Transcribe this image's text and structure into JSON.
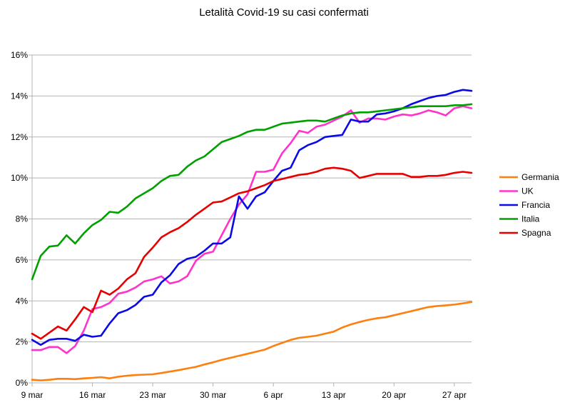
{
  "chart_data": {
    "type": "line",
    "title": "Letalità Covid-19 su casi confermati",
    "xlabel": "",
    "ylabel": "",
    "ylim": [
      0,
      16
    ],
    "yticks": [
      0,
      2,
      4,
      6,
      8,
      10,
      12,
      14,
      16
    ],
    "ytick_labels": [
      "0%",
      "2%",
      "4%",
      "6%",
      "8%",
      "10%",
      "12%",
      "14%",
      "16%"
    ],
    "xrange_days": [
      0,
      51
    ],
    "xticks": [
      {
        "day": 0,
        "label": "9 mar"
      },
      {
        "day": 7,
        "label": "16 mar"
      },
      {
        "day": 14,
        "label": "23 mar"
      },
      {
        "day": 21,
        "label": "30 mar"
      },
      {
        "day": 28,
        "label": "6 apr"
      },
      {
        "day": 35,
        "label": "13 apr"
      },
      {
        "day": 42,
        "label": "20 apr"
      },
      {
        "day": 49,
        "label": "27 apr"
      }
    ],
    "grid": true,
    "legend_position": "right",
    "series": [
      {
        "name": "Germania",
        "color": "#ff7f0e",
        "values": [
          0.15,
          0.12,
          0.15,
          0.2,
          0.2,
          0.18,
          0.22,
          0.24,
          0.28,
          0.22,
          0.3,
          0.35,
          0.38,
          0.4,
          0.42,
          0.48,
          0.55,
          0.62,
          0.7,
          0.78,
          0.9,
          1.0,
          1.12,
          1.22,
          1.32,
          1.42,
          1.52,
          1.62,
          1.8,
          1.95,
          2.1,
          2.2,
          2.25,
          2.3,
          2.4,
          2.5,
          2.7,
          2.85,
          2.97,
          3.07,
          3.15,
          3.2,
          3.3,
          3.4,
          3.5,
          3.6,
          3.7,
          3.75,
          3.78,
          3.82,
          3.88,
          3.95
        ]
      },
      {
        "name": "UK",
        "color": "#ff33cc",
        "values": [
          1.6,
          1.6,
          1.75,
          1.75,
          1.45,
          1.8,
          2.55,
          3.6,
          3.7,
          3.9,
          4.35,
          4.45,
          4.65,
          4.95,
          5.05,
          5.2,
          4.85,
          4.95,
          5.2,
          5.95,
          6.3,
          6.4,
          7.2,
          8.0,
          8.7,
          9.2,
          10.3,
          10.3,
          10.4,
          11.2,
          11.7,
          12.3,
          12.2,
          12.5,
          12.6,
          12.8,
          13.0,
          13.3,
          12.7,
          12.9,
          12.9,
          12.85,
          13.0,
          13.1,
          13.05,
          13.15,
          13.3,
          13.2,
          13.05,
          13.4,
          13.5,
          13.4
        ]
      },
      {
        "name": "Francia",
        "color": "#0a0ae6",
        "values": [
          2.1,
          1.85,
          2.1,
          2.15,
          2.15,
          2.05,
          2.35,
          2.25,
          2.3,
          2.9,
          3.4,
          3.55,
          3.8,
          4.2,
          4.3,
          4.9,
          5.25,
          5.8,
          6.05,
          6.15,
          6.45,
          6.8,
          6.8,
          7.1,
          9.1,
          8.5,
          9.1,
          9.3,
          9.85,
          10.35,
          10.5,
          11.35,
          11.6,
          11.75,
          12.0,
          12.05,
          12.1,
          12.85,
          12.75,
          12.75,
          13.1,
          13.15,
          13.25,
          13.4,
          13.6,
          13.75,
          13.9,
          14.0,
          14.05,
          14.2,
          14.3,
          14.25
        ]
      },
      {
        "name": "Italia",
        "color": "#00a000",
        "values": [
          5.05,
          6.2,
          6.65,
          6.7,
          7.2,
          6.8,
          7.3,
          7.7,
          7.95,
          8.35,
          8.3,
          8.6,
          9.0,
          9.25,
          9.5,
          9.85,
          10.1,
          10.15,
          10.55,
          10.85,
          11.05,
          11.4,
          11.75,
          11.9,
          12.05,
          12.25,
          12.35,
          12.35,
          12.5,
          12.65,
          12.7,
          12.75,
          12.8,
          12.8,
          12.75,
          12.9,
          13.05,
          13.15,
          13.2,
          13.2,
          13.25,
          13.3,
          13.35,
          13.4,
          13.45,
          13.5,
          13.5,
          13.5,
          13.5,
          13.55,
          13.55,
          13.6
        ]
      },
      {
        "name": "Spagna",
        "color": "#e60000",
        "values": [
          2.4,
          2.15,
          2.45,
          2.75,
          2.55,
          3.1,
          3.7,
          3.45,
          4.5,
          4.3,
          4.6,
          5.05,
          5.35,
          6.15,
          6.6,
          7.1,
          7.35,
          7.55,
          7.85,
          8.2,
          8.5,
          8.8,
          8.85,
          9.05,
          9.25,
          9.35,
          9.5,
          9.65,
          9.85,
          9.95,
          10.05,
          10.15,
          10.2,
          10.3,
          10.45,
          10.5,
          10.45,
          10.35,
          10.0,
          10.1,
          10.2,
          10.2,
          10.2,
          10.2,
          10.05,
          10.05,
          10.1,
          10.1,
          10.15,
          10.25,
          10.3,
          10.25
        ]
      }
    ]
  }
}
